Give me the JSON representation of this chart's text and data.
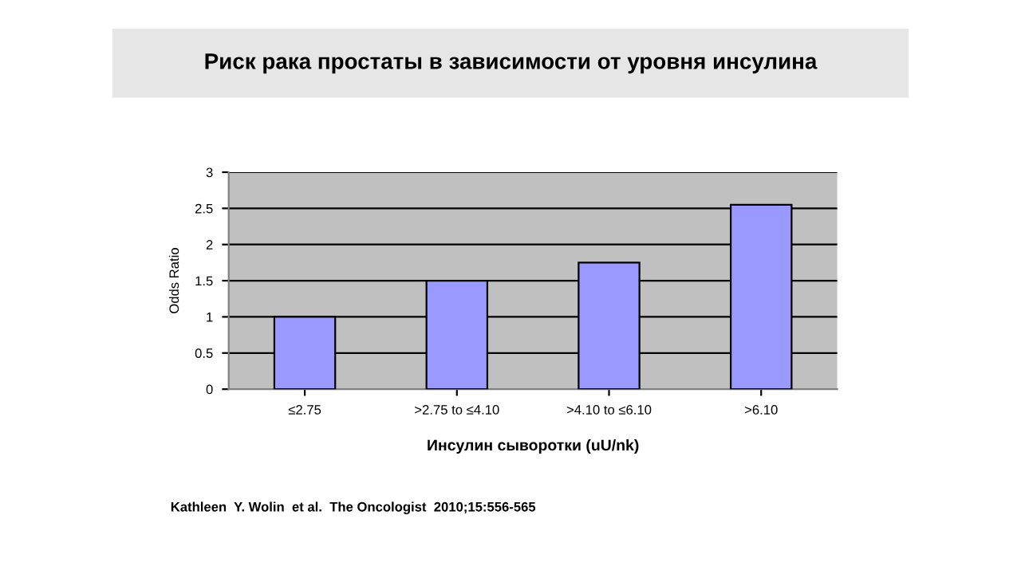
{
  "chart_data": {
    "type": "bar",
    "title": "Риск рака простаты в зависимости от уровня инсулина",
    "categories": [
      "≤2.75",
      ">2.75 to ≤4.10",
      ">4.10 to ≤6.10",
      ">6.10"
    ],
    "values": [
      1.0,
      1.5,
      1.75,
      2.55
    ],
    "color": "#9999ff",
    "xlabel": "Инсулин сыворотки (uU/nk)",
    "ylabel": "Odds Ratio",
    "ylim": [
      0,
      3
    ],
    "yticks": [
      0,
      0.5,
      1,
      1.5,
      2,
      2.5,
      3
    ],
    "grid": "y",
    "annotations": [
      "Kathleen  Y. Wolin  et al.  The Oncologist  2010;15:556-565"
    ]
  }
}
